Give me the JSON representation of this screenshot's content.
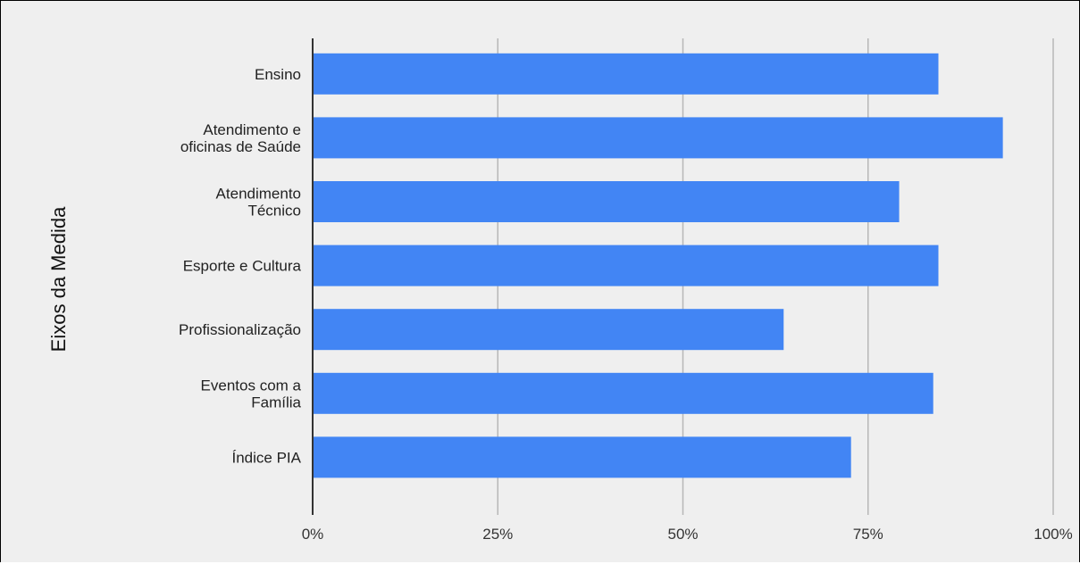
{
  "chart_data": {
    "type": "bar",
    "orientation": "horizontal",
    "title": "",
    "ylabel": "Eixos da Medida",
    "xlabel": "",
    "categories": [
      [
        "Ensino"
      ],
      [
        "Atendimento e",
        "oficinas de Saúde"
      ],
      [
        "Atendimento",
        "Técnico"
      ],
      [
        "Esporte e Cultura"
      ],
      [
        "Profissionalização"
      ],
      [
        "Eventos com a",
        "Família"
      ],
      [
        "Índice PIA"
      ]
    ],
    "values": [
      84.5,
      93.2,
      79.2,
      84.5,
      63.6,
      83.8,
      72.7
    ],
    "xlim": [
      0,
      100
    ],
    "x_ticks": [
      0,
      25,
      50,
      75,
      100
    ],
    "x_tick_labels": [
      "0%",
      "25%",
      "50%",
      "75%",
      "100%"
    ],
    "grid": true,
    "bar_color": "#4285f4",
    "grid_color": "#b7b7b7",
    "background_color": "#efefef"
  }
}
